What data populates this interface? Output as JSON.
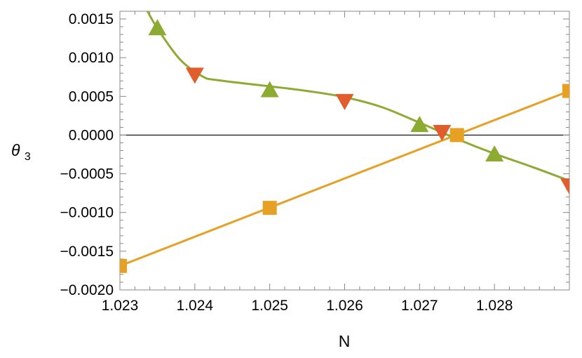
{
  "chart_data": {
    "type": "line",
    "xlabel": "N",
    "ylabel": "θ",
    "ylabel_subscript": "3",
    "xlim": [
      1.023,
      1.029
    ],
    "ylim": [
      -0.002,
      0.0016
    ],
    "xticks": [
      {
        "value": 1.023,
        "label": "1.023"
      },
      {
        "value": 1.024,
        "label": "1.024"
      },
      {
        "value": 1.025,
        "label": "1.025"
      },
      {
        "value": 1.026,
        "label": "1.026"
      },
      {
        "value": 1.027,
        "label": "1.027"
      },
      {
        "value": 1.028,
        "label": "1.028"
      }
    ],
    "yticks": [
      {
        "value": 0.0015,
        "label": "0.0015"
      },
      {
        "value": 0.001,
        "label": "0.0010"
      },
      {
        "value": 0.0005,
        "label": "0.0005"
      },
      {
        "value": 0.0,
        "label": "0.0000"
      },
      {
        "value": -0.0005,
        "label": "−0.0005"
      },
      {
        "value": -0.001,
        "label": "−0.0010"
      },
      {
        "value": -0.0015,
        "label": "−0.0015"
      },
      {
        "value": -0.002,
        "label": "−0.0020"
      }
    ],
    "zero_line": true,
    "grid": false,
    "series": [
      {
        "marker": "triangle-up",
        "color": "#8DAA33",
        "points": [
          [
            1.0235,
            0.00138
          ],
          [
            1.025,
            0.00058
          ],
          [
            1.027,
            0.00013
          ],
          [
            1.028,
            -0.00025
          ]
        ],
        "curve": [
          [
            1.02334,
            0.00165
          ],
          [
            1.0235,
            0.00138
          ],
          [
            1.0238,
            0.00098
          ],
          [
            1.0241,
            0.00076
          ],
          [
            1.0243,
            0.00071
          ],
          [
            1.025,
            0.00063
          ],
          [
            1.0255,
            0.00057
          ],
          [
            1.026,
            0.00049
          ],
          [
            1.0265,
            0.00036
          ],
          [
            1.027,
            0.00016
          ],
          [
            1.0275,
            -5e-05
          ],
          [
            1.028,
            -0.00024
          ],
          [
            1.0285,
            -0.00041
          ],
          [
            1.029,
            -0.00059
          ]
        ]
      },
      {
        "marker": "triangle-down",
        "color": "#E15D2B",
        "points": [
          [
            1.024,
            0.00078
          ],
          [
            1.026,
            0.00044
          ],
          [
            1.0273,
            4e-05
          ],
          [
            1.029,
            -0.00065
          ]
        ]
      },
      {
        "marker": "square",
        "color": "#E6A024",
        "points": [
          [
            1.023,
            -0.00169
          ],
          [
            1.025,
            -0.00094
          ],
          [
            1.0275,
            0.0
          ],
          [
            1.029,
            0.00057
          ]
        ],
        "curve": [
          [
            1.023,
            -0.00169
          ],
          [
            1.029,
            0.00057
          ]
        ]
      }
    ]
  }
}
